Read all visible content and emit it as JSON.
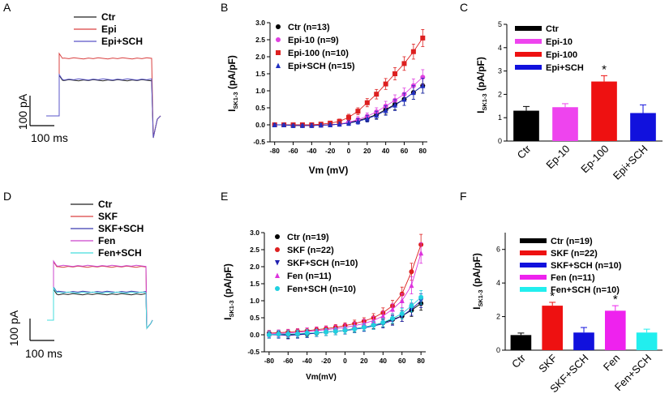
{
  "panels": [
    {
      "letter": "A",
      "type": "traces",
      "legend": [
        {
          "label": "Ctr",
          "color": "#222222"
        },
        {
          "label": "Epi",
          "color": "#d94040"
        },
        {
          "label": "Epi+SCH",
          "color": "#5a55c8"
        }
      ],
      "scale_current": "100 pA",
      "scale_time": "100 ms"
    },
    {
      "letter": "B",
      "type": "line",
      "x": [
        -80,
        -70,
        -60,
        -50,
        -40,
        -30,
        -20,
        -10,
        0,
        10,
        20,
        30,
        40,
        50,
        60,
        70,
        80
      ],
      "xticks": [
        -80,
        -60,
        -40,
        -20,
        0,
        20,
        40,
        60,
        80
      ],
      "yticks": [
        "-0.5",
        "0.0",
        "0.5",
        "1.0",
        "1.5",
        "2.0",
        "2.5",
        "3.0"
      ],
      "xlim": [
        -85,
        85
      ],
      "ylim": [
        -0.5,
        3.0
      ],
      "ylabel_main": "I",
      "ylabel_sub": "SK1-3",
      "ylabel_unit": " (pA/pF)",
      "xlabel": "Vm (mV)",
      "series": [
        {
          "name": "Ctr (n=13)",
          "color": "#000000",
          "marker": "circle",
          "values": [
            0.0,
            0.0,
            -0.02,
            -0.02,
            -0.02,
            -0.01,
            0.0,
            0.02,
            0.06,
            0.12,
            0.2,
            0.3,
            0.45,
            0.6,
            0.75,
            0.95,
            1.15
          ],
          "err": [
            0.03,
            0.03,
            0.04,
            0.04,
            0.05,
            0.05,
            0.05,
            0.06,
            0.07,
            0.08,
            0.1,
            0.12,
            0.14,
            0.16,
            0.18,
            0.2,
            0.22
          ]
        },
        {
          "name": "Epi-10 (n=9)",
          "color": "#e040e0",
          "marker": "circle",
          "values": [
            0.0,
            0.0,
            0.0,
            -0.02,
            -0.02,
            -0.01,
            0.0,
            0.02,
            0.08,
            0.15,
            0.25,
            0.38,
            0.55,
            0.72,
            0.9,
            1.15,
            1.4
          ],
          "err": [
            0.03,
            0.03,
            0.04,
            0.04,
            0.05,
            0.05,
            0.05,
            0.06,
            0.07,
            0.09,
            0.1,
            0.12,
            0.14,
            0.16,
            0.18,
            0.2,
            0.22
          ]
        },
        {
          "name": "Epi-100 (n=10)",
          "color": "#dd2020",
          "marker": "square",
          "values": [
            0.0,
            0.0,
            0.0,
            0.0,
            0.0,
            0.02,
            0.05,
            0.1,
            0.22,
            0.4,
            0.65,
            0.9,
            1.2,
            1.5,
            1.8,
            2.15,
            2.55
          ],
          "err": [
            0.03,
            0.03,
            0.04,
            0.04,
            0.05,
            0.05,
            0.06,
            0.07,
            0.09,
            0.1,
            0.12,
            0.14,
            0.16,
            0.18,
            0.2,
            0.22,
            0.25
          ]
        },
        {
          "name": "Epi+SCH (n=15)",
          "color": "#2030c0",
          "marker": "triangle",
          "values": [
            0.0,
            0.0,
            -0.02,
            -0.02,
            -0.02,
            -0.01,
            0.0,
            0.02,
            0.05,
            0.1,
            0.18,
            0.28,
            0.42,
            0.58,
            0.75,
            0.95,
            1.15
          ],
          "err": [
            0.03,
            0.03,
            0.04,
            0.04,
            0.05,
            0.05,
            0.05,
            0.06,
            0.07,
            0.08,
            0.1,
            0.12,
            0.14,
            0.16,
            0.18,
            0.2,
            0.22
          ]
        }
      ]
    },
    {
      "letter": "C",
      "type": "bar",
      "categories": [
        "Ctr",
        "Ep-10",
        "Ep-100",
        "Epi+SCH"
      ],
      "legend_labels": [
        "Ctr",
        "Epi-10",
        "Epi-100",
        "Epi+SCH"
      ],
      "colors": [
        "#000000",
        "#ee44ee",
        "#ee1111",
        "#1111dd"
      ],
      "values": [
        1.3,
        1.45,
        2.55,
        1.2
      ],
      "err": [
        0.18,
        0.15,
        0.25,
        0.35
      ],
      "significance": [
        "",
        "",
        "*",
        ""
      ],
      "ylim": [
        0,
        5
      ],
      "yticks": [
        "0",
        "1",
        "2",
        "3",
        "4",
        "5"
      ],
      "ylabel_main": "I",
      "ylabel_sub": "SK1-3",
      "ylabel_unit": " (pA/pF)"
    },
    {
      "letter": "D",
      "type": "traces",
      "legend": [
        {
          "label": "Ctr",
          "color": "#222222"
        },
        {
          "label": "SKF",
          "color": "#d94040"
        },
        {
          "label": "SKF+SCH",
          "color": "#3a3ab0"
        },
        {
          "label": "Fen",
          "color": "#cc44cc"
        },
        {
          "label": "Fen+SCH",
          "color": "#44dddd"
        }
      ],
      "scale_current": "100 pA",
      "scale_time": "100 ms"
    },
    {
      "letter": "E",
      "type": "line",
      "x": [
        -80,
        -70,
        -60,
        -50,
        -40,
        -30,
        -20,
        -10,
        0,
        10,
        20,
        30,
        40,
        50,
        60,
        70,
        80
      ],
      "xticks": [
        -80,
        -60,
        -40,
        -20,
        0,
        20,
        40,
        60,
        80
      ],
      "yticks": [
        "-0.5",
        "0.0",
        "0.5",
        "1.0",
        "1.5",
        "2.0",
        "2.5",
        "3.0"
      ],
      "xlim": [
        -85,
        85
      ],
      "ylim": [
        -0.5,
        3.0
      ],
      "ylabel_main": "I",
      "ylabel_sub": "SK1-3",
      "ylabel_unit": " (pA/pF)",
      "xlabel": "Vm(mV)",
      "series": [
        {
          "name": "Ctr (n=19)",
          "color": "#000000",
          "marker": "circle",
          "values": [
            0.0,
            0.02,
            0.0,
            0.02,
            0.03,
            0.05,
            0.08,
            0.1,
            0.13,
            0.18,
            0.22,
            0.28,
            0.35,
            0.45,
            0.55,
            0.72,
            0.92
          ],
          "err": [
            0.1,
            0.1,
            0.1,
            0.1,
            0.1,
            0.1,
            0.1,
            0.1,
            0.1,
            0.1,
            0.1,
            0.1,
            0.12,
            0.14,
            0.16,
            0.18,
            0.2
          ]
        },
        {
          "name": "SKF (n=22)",
          "color": "#dd2020",
          "marker": "circle",
          "values": [
            0.05,
            0.06,
            0.08,
            0.1,
            0.12,
            0.15,
            0.18,
            0.22,
            0.27,
            0.33,
            0.4,
            0.5,
            0.65,
            0.85,
            1.2,
            1.85,
            2.65
          ],
          "err": [
            0.08,
            0.08,
            0.08,
            0.08,
            0.08,
            0.08,
            0.08,
            0.08,
            0.08,
            0.1,
            0.1,
            0.12,
            0.14,
            0.16,
            0.2,
            0.25,
            0.3
          ]
        },
        {
          "name": "SKF+SCH (n=10)",
          "color": "#2020b0",
          "marker": "triangle-down",
          "values": [
            0.0,
            0.0,
            -0.02,
            0.0,
            0.02,
            0.05,
            0.08,
            0.1,
            0.12,
            0.16,
            0.2,
            0.26,
            0.32,
            0.42,
            0.55,
            0.75,
            1.0
          ],
          "err": [
            0.1,
            0.1,
            0.1,
            0.1,
            0.1,
            0.1,
            0.1,
            0.1,
            0.1,
            0.1,
            0.1,
            0.1,
            0.12,
            0.14,
            0.16,
            0.18,
            0.2
          ]
        },
        {
          "name": "Fen (n=11)",
          "color": "#dd33dd",
          "marker": "triangle",
          "values": [
            0.02,
            0.04,
            0.05,
            0.07,
            0.1,
            0.12,
            0.15,
            0.18,
            0.22,
            0.27,
            0.33,
            0.42,
            0.55,
            0.75,
            1.0,
            1.45,
            2.4
          ],
          "err": [
            0.1,
            0.1,
            0.1,
            0.1,
            0.1,
            0.1,
            0.1,
            0.1,
            0.1,
            0.1,
            0.12,
            0.12,
            0.14,
            0.16,
            0.2,
            0.25,
            0.3
          ]
        },
        {
          "name": "Fen+SCH (n=10)",
          "color": "#20d0e0",
          "marker": "circle",
          "values": [
            0.0,
            0.02,
            0.02,
            0.03,
            0.05,
            0.06,
            0.08,
            0.1,
            0.13,
            0.17,
            0.22,
            0.28,
            0.36,
            0.48,
            0.62,
            0.85,
            1.1
          ],
          "err": [
            0.1,
            0.1,
            0.1,
            0.1,
            0.1,
            0.1,
            0.1,
            0.1,
            0.1,
            0.1,
            0.1,
            0.12,
            0.12,
            0.14,
            0.16,
            0.18,
            0.2
          ]
        }
      ]
    },
    {
      "letter": "F",
      "type": "bar",
      "categories": [
        "Ctr",
        "SKF",
        "SKF+SCH",
        "Fen",
        "Fen+SCH"
      ],
      "legend_labels": [
        "Ctr (n=19)",
        "SKF (n=22)",
        "SKF+SCH (n=10)",
        "Fen (n=11)",
        "Fen+SCH (n=10)"
      ],
      "colors": [
        "#000000",
        "#ee1111",
        "#1111dd",
        "#ee22ee",
        "#22eeee"
      ],
      "values": [
        0.9,
        2.65,
        1.05,
        2.35,
        1.05
      ],
      "err": [
        0.12,
        0.2,
        0.3,
        0.3,
        0.2
      ],
      "significance": [
        "",
        "*",
        "",
        "*",
        ""
      ],
      "ylim": [
        0,
        7
      ],
      "yticks": [
        "0",
        "2",
        "4",
        "6"
      ],
      "ylabel_main": "I",
      "ylabel_sub": "SK1-3",
      "ylabel_unit": " (pA/pF)"
    }
  ],
  "chart_data": [
    {
      "panel": "B",
      "type": "line",
      "title": "",
      "xlabel": "Vm (mV)",
      "ylabel": "ISK1-3 (pA/pF)",
      "xlim": [
        -85,
        85
      ],
      "ylim": [
        -0.5,
        3.0
      ],
      "x": [
        -80,
        -70,
        -60,
        -50,
        -40,
        -30,
        -20,
        -10,
        0,
        10,
        20,
        30,
        40,
        50,
        60,
        70,
        80
      ],
      "series": [
        {
          "name": "Ctr (n=13)",
          "values": [
            0.0,
            0.0,
            -0.02,
            -0.02,
            -0.02,
            -0.01,
            0.0,
            0.02,
            0.06,
            0.12,
            0.2,
            0.3,
            0.45,
            0.6,
            0.75,
            0.95,
            1.15
          ]
        },
        {
          "name": "Epi-10 (n=9)",
          "values": [
            0.0,
            0.0,
            0.0,
            -0.02,
            -0.02,
            -0.01,
            0.0,
            0.02,
            0.08,
            0.15,
            0.25,
            0.38,
            0.55,
            0.72,
            0.9,
            1.15,
            1.4
          ]
        },
        {
          "name": "Epi-100 (n=10)",
          "values": [
            0.0,
            0.0,
            0.0,
            0.0,
            0.0,
            0.02,
            0.05,
            0.1,
            0.22,
            0.4,
            0.65,
            0.9,
            1.2,
            1.5,
            1.8,
            2.15,
            2.55
          ]
        },
        {
          "name": "Epi+SCH (n=15)",
          "values": [
            0.0,
            0.0,
            -0.02,
            -0.02,
            -0.02,
            -0.01,
            0.0,
            0.02,
            0.05,
            0.1,
            0.18,
            0.28,
            0.42,
            0.58,
            0.75,
            0.95,
            1.15
          ]
        }
      ]
    },
    {
      "panel": "C",
      "type": "bar",
      "title": "",
      "ylabel": "ISK1-3 (pA/pF)",
      "ylim": [
        0,
        5
      ],
      "categories": [
        "Ctr",
        "Ep-10",
        "Ep-100",
        "Epi+SCH"
      ],
      "values": [
        1.3,
        1.45,
        2.55,
        1.2
      ]
    },
    {
      "panel": "E",
      "type": "line",
      "title": "",
      "xlabel": "Vm(mV)",
      "ylabel": "ISK1-3 (pA/pF)",
      "xlim": [
        -85,
        85
      ],
      "ylim": [
        -0.5,
        3.0
      ],
      "x": [
        -80,
        -70,
        -60,
        -50,
        -40,
        -30,
        -20,
        -10,
        0,
        10,
        20,
        30,
        40,
        50,
        60,
        70,
        80
      ],
      "series": [
        {
          "name": "Ctr (n=19)",
          "values": [
            0.0,
            0.02,
            0.0,
            0.02,
            0.03,
            0.05,
            0.08,
            0.1,
            0.13,
            0.18,
            0.22,
            0.28,
            0.35,
            0.45,
            0.55,
            0.72,
            0.92
          ]
        },
        {
          "name": "SKF (n=22)",
          "values": [
            0.05,
            0.06,
            0.08,
            0.1,
            0.12,
            0.15,
            0.18,
            0.22,
            0.27,
            0.33,
            0.4,
            0.5,
            0.65,
            0.85,
            1.2,
            1.85,
            2.65
          ]
        },
        {
          "name": "SKF+SCH (n=10)",
          "values": [
            0.0,
            0.0,
            -0.02,
            0.0,
            0.02,
            0.05,
            0.08,
            0.1,
            0.12,
            0.16,
            0.2,
            0.26,
            0.32,
            0.42,
            0.55,
            0.75,
            1.0
          ]
        },
        {
          "name": "Fen (n=11)",
          "values": [
            0.02,
            0.04,
            0.05,
            0.07,
            0.1,
            0.12,
            0.15,
            0.18,
            0.22,
            0.27,
            0.33,
            0.42,
            0.55,
            0.75,
            1.0,
            1.45,
            2.4
          ]
        },
        {
          "name": "Fen+SCH (n=10)",
          "values": [
            0.0,
            0.02,
            0.02,
            0.03,
            0.05,
            0.06,
            0.08,
            0.1,
            0.13,
            0.17,
            0.22,
            0.28,
            0.36,
            0.48,
            0.62,
            0.85,
            1.1
          ]
        }
      ]
    },
    {
      "panel": "F",
      "type": "bar",
      "title": "",
      "ylabel": "ISK1-3 (pA/pF)",
      "ylim": [
        0,
        7
      ],
      "categories": [
        "Ctr",
        "SKF",
        "SKF+SCH",
        "Fen",
        "Fen+SCH"
      ],
      "values": [
        0.9,
        2.65,
        1.05,
        2.35,
        1.05
      ]
    }
  ]
}
